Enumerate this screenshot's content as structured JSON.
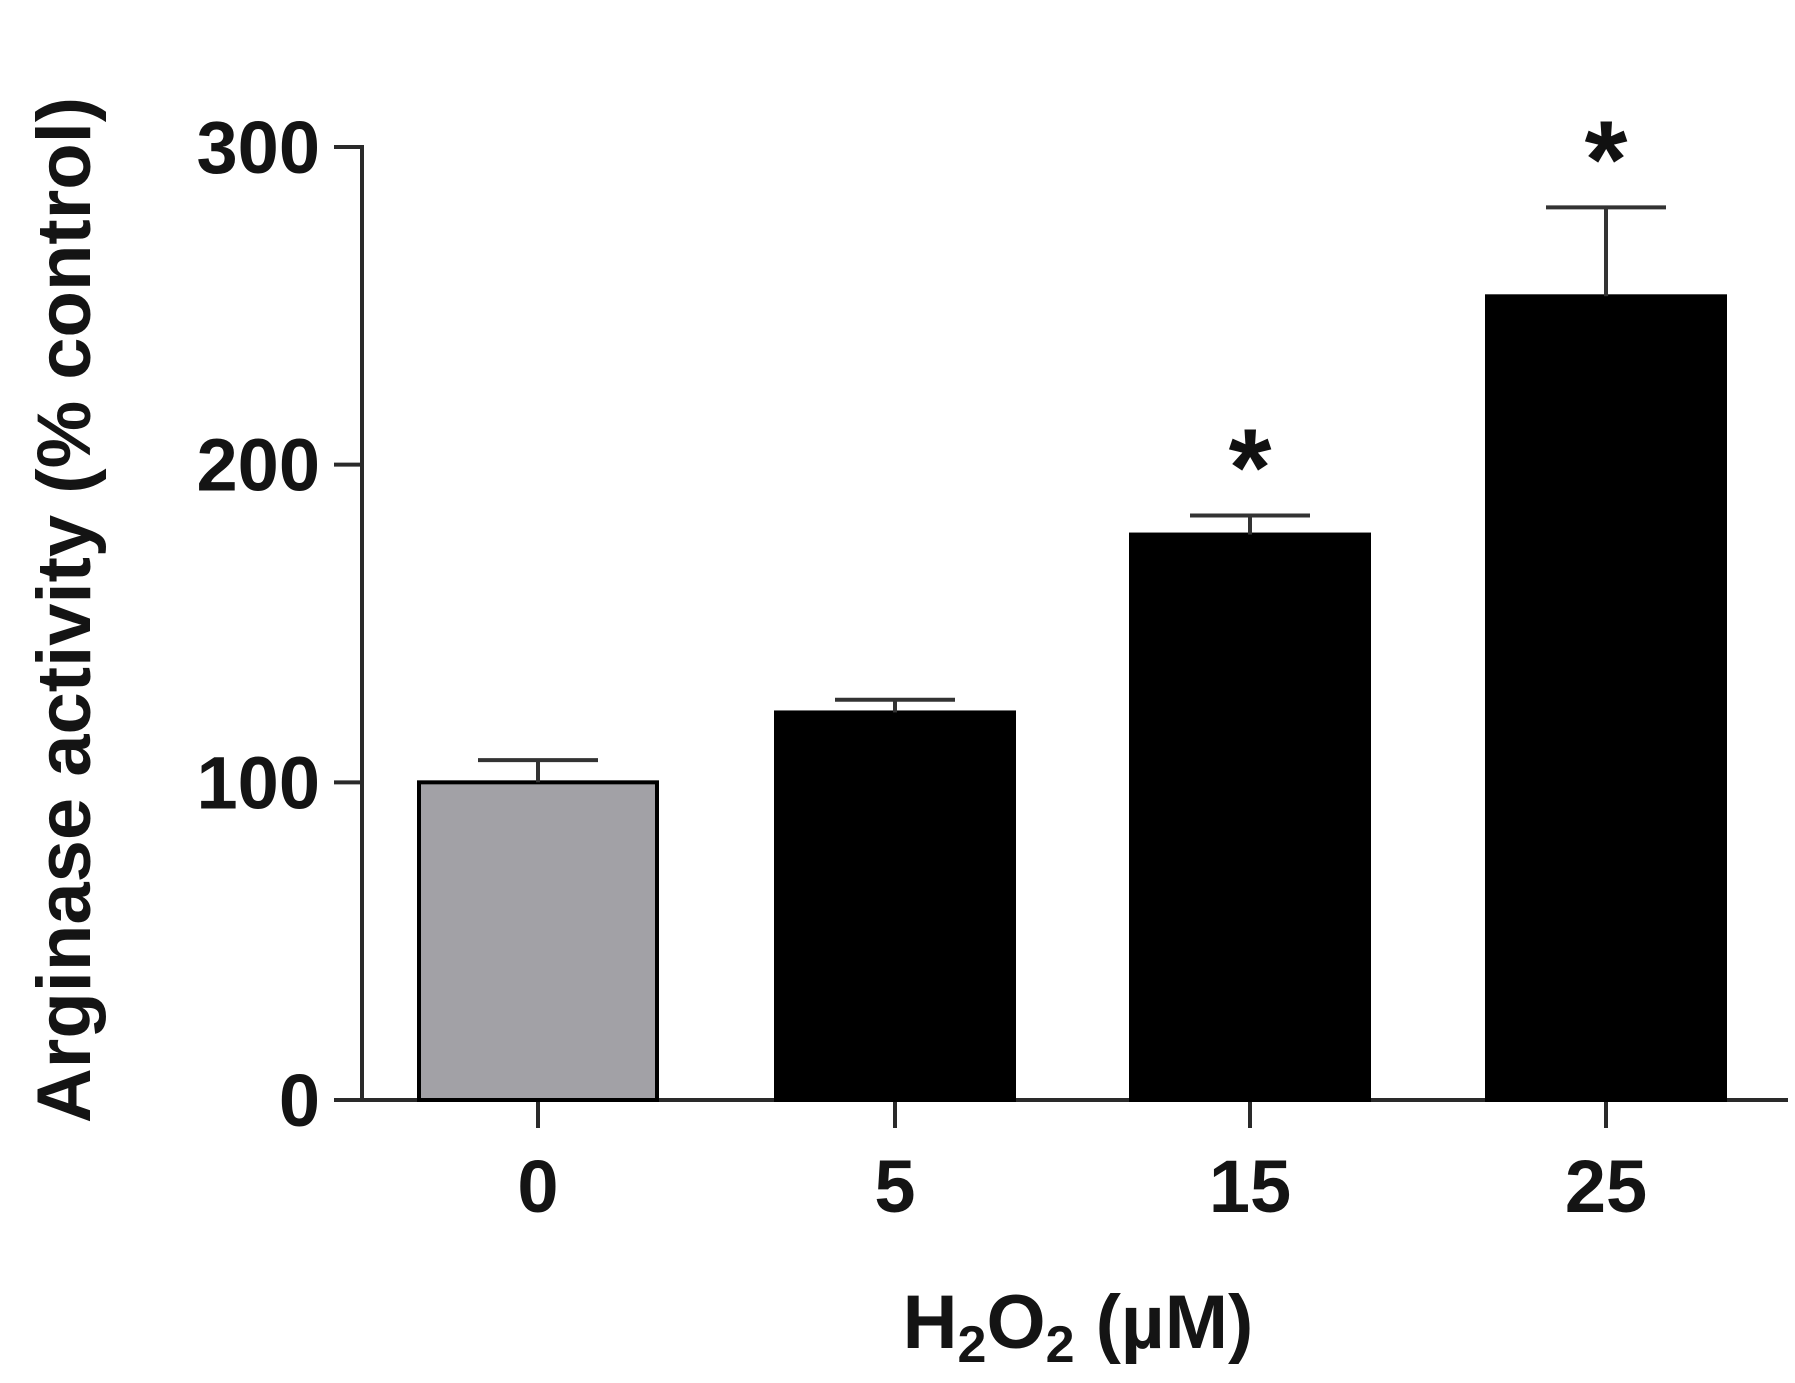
{
  "chart_data": {
    "type": "bar",
    "categories": [
      "0",
      "5",
      "15",
      "25"
    ],
    "values": [
      100,
      122,
      178,
      253
    ],
    "errors": [
      7,
      4,
      6,
      28
    ],
    "significance": [
      "",
      "",
      "*",
      "*"
    ],
    "bar_colors": [
      "#a2a1a6",
      "#000000",
      "#000000",
      "#000000"
    ],
    "ylabel": "Arginase activity (% control)",
    "xlabel_main": "H",
    "xlabel_sub1": "2",
    "xlabel_mid": "O",
    "xlabel_sub2": "2",
    "xlabel_unit": " (µM)",
    "ylim": [
      0,
      300
    ],
    "yticks": [
      0,
      100,
      200,
      300
    ],
    "grid": false,
    "legend": false
  }
}
